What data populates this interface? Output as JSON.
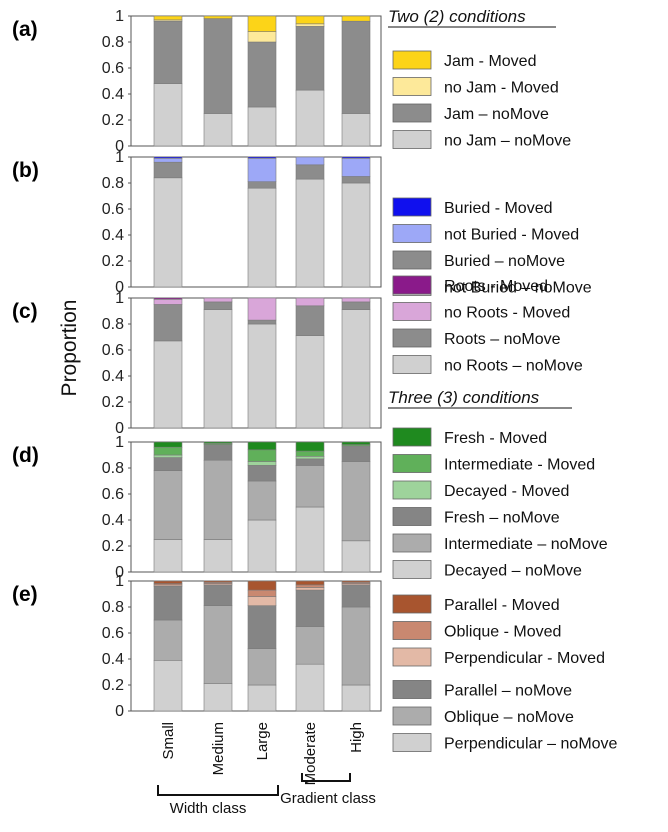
{
  "headers": {
    "two": "Two (2) conditions",
    "three": "Three (3) conditions"
  },
  "ylabel": "Proportion",
  "group_labels": {
    "width": "Width class",
    "gradient": "Gradient class"
  },
  "chart_data": [
    {
      "label": "(a)",
      "type": "bar",
      "stacked": true,
      "ylim": [
        0,
        1
      ],
      "yticks": [
        "0",
        "0.2",
        "0.4",
        "0.6",
        "0.8",
        "1"
      ],
      "categories": [
        "Small",
        "Medium",
        "Large",
        "Moderate",
        "High"
      ],
      "series": [
        {
          "name": "no Jam – noMove",
          "color": "#d0d0d0",
          "values": [
            0.48,
            0.25,
            0.3,
            0.43,
            0.25
          ]
        },
        {
          "name": "Jam – noMove",
          "color": "#8c8c8c",
          "values": [
            0.48,
            0.73,
            0.5,
            0.49,
            0.71
          ]
        },
        {
          "name": "no Jam - Moved",
          "color": "#fde99a",
          "values": [
            0.01,
            0.0,
            0.08,
            0.02,
            0.0
          ]
        },
        {
          "name": "Jam - Moved",
          "color": "#fcd418",
          "values": [
            0.03,
            0.02,
            0.12,
            0.06,
            0.04
          ]
        }
      ]
    },
    {
      "label": "(b)",
      "type": "bar",
      "stacked": true,
      "ylim": [
        0,
        1
      ],
      "yticks": [
        "0",
        "0.2",
        "0.4",
        "0.6",
        "0.8",
        "1"
      ],
      "categories": [
        "Small",
        "Medium",
        "Large",
        "Moderate",
        "High"
      ],
      "series": [
        {
          "name": "not Buried – noMove",
          "color": "#d0d0d0",
          "values": [
            0.84,
            0,
            0.76,
            0.83,
            0.8
          ]
        },
        {
          "name": "Buried – noMove",
          "color": "#8c8c8c",
          "values": [
            0.12,
            0,
            0.05,
            0.11,
            0.05
          ]
        },
        {
          "name": "not Buried - Moved",
          "color": "#9da8f7",
          "values": [
            0.03,
            0,
            0.18,
            0.06,
            0.14
          ]
        },
        {
          "name": "Buried - Moved",
          "color": "#1010ee",
          "values": [
            0.01,
            0,
            0.01,
            0.0,
            0.01
          ]
        }
      ]
    },
    {
      "label": "(c)",
      "type": "bar",
      "stacked": true,
      "ylim": [
        0,
        1
      ],
      "yticks": [
        "0",
        "0.2",
        "0.4",
        "0.6",
        "0.8",
        "1"
      ],
      "categories": [
        "Small",
        "Medium",
        "Large",
        "Moderate",
        "High"
      ],
      "series": [
        {
          "name": "no Roots  – noMove",
          "color": "#d0d0d0",
          "values": [
            0.67,
            0.91,
            0.8,
            0.71,
            0.91
          ]
        },
        {
          "name": "Roots – noMove",
          "color": "#8c8c8c",
          "values": [
            0.28,
            0.06,
            0.03,
            0.23,
            0.06
          ]
        },
        {
          "name": "no Roots - Moved",
          "color": "#d9a6d9",
          "values": [
            0.04,
            0.03,
            0.17,
            0.06,
            0.03
          ]
        },
        {
          "name": "Roots - Moved",
          "color": "#8a1a8a",
          "values": [
            0.01,
            0.0,
            0.0,
            0.0,
            0.0
          ]
        }
      ]
    },
    {
      "label": "(d)",
      "type": "bar",
      "stacked": true,
      "ylim": [
        0,
        1
      ],
      "yticks": [
        "0",
        "0.2",
        "0.4",
        "0.6",
        "0.8",
        "1"
      ],
      "categories": [
        "Small",
        "Medium",
        "Large",
        "Moderate",
        "High"
      ],
      "series": [
        {
          "name": "Decayed – noMove",
          "color": "#d0d0d0",
          "values": [
            0.25,
            0.25,
            0.4,
            0.5,
            0.24
          ]
        },
        {
          "name": "Intermediate – noMove",
          "color": "#acacac",
          "values": [
            0.53,
            0.61,
            0.3,
            0.32,
            0.61
          ]
        },
        {
          "name": "Fresh – noMove",
          "color": "#858585",
          "values": [
            0.1,
            0.12,
            0.12,
            0.05,
            0.12
          ]
        },
        {
          "name": "Decayed - Moved",
          "color": "#9ed39b",
          "values": [
            0.02,
            0.0,
            0.03,
            0.02,
            0.0
          ]
        },
        {
          "name": "Intermediate - Moved",
          "color": "#60b05a",
          "values": [
            0.06,
            0.01,
            0.09,
            0.04,
            0.01
          ]
        },
        {
          "name": "Fresh - Moved",
          "color": "#1f8a1f",
          "values": [
            0.04,
            0.01,
            0.06,
            0.07,
            0.02
          ]
        }
      ]
    },
    {
      "label": "(e)",
      "type": "bar",
      "stacked": true,
      "ylim": [
        0,
        1
      ],
      "yticks": [
        "0",
        "0.2",
        "0.4",
        "0.6",
        "0.8",
        "1"
      ],
      "categories": [
        "Small",
        "Medium",
        "Large",
        "Moderate",
        "High"
      ],
      "series": [
        {
          "name": "Perpendicular – noMove",
          "color": "#d0d0d0",
          "values": [
            0.39,
            0.21,
            0.2,
            0.36,
            0.2
          ]
        },
        {
          "name": "Oblique – noMove",
          "color": "#acacac",
          "values": [
            0.31,
            0.6,
            0.28,
            0.29,
            0.6
          ]
        },
        {
          "name": "Parallel – noMove",
          "color": "#858585",
          "values": [
            0.26,
            0.16,
            0.33,
            0.28,
            0.17
          ]
        },
        {
          "name": "Perpendicular - Moved",
          "color": "#e3b9a6",
          "values": [
            0.01,
            0.01,
            0.07,
            0.02,
            0.01
          ]
        },
        {
          "name": "Oblique - Moved",
          "color": "#c98870",
          "values": [
            0.01,
            0.01,
            0.05,
            0.02,
            0.01
          ]
        },
        {
          "name": "Parallel - Moved",
          "color": "#a8552f",
          "values": [
            0.02,
            0.01,
            0.07,
            0.03,
            0.01
          ]
        }
      ]
    }
  ]
}
